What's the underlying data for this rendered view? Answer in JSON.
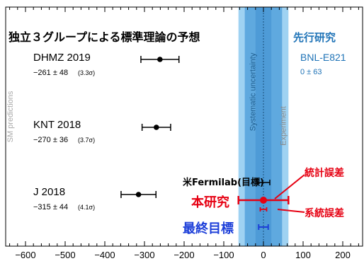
{
  "chart_data": {
    "type": "scatter",
    "title": "独立３グループによる標準理論の予想",
    "xlim": [
      -650,
      250
    ],
    "x_ticks": [
      "−600",
      "−500",
      "−400",
      "−300",
      "−200",
      "−100",
      "0",
      "100",
      "200"
    ],
    "x_tick_values": [
      -600,
      -500,
      -400,
      -300,
      -200,
      -100,
      0,
      100,
      200
    ],
    "xlabel": "",
    "ylabel": "",
    "side_labels": {
      "left": "SM predictions",
      "band_center": "Systematic uncertainty",
      "band_right": "Experiment"
    },
    "bands": {
      "experiment_range": [
        -63,
        63
      ],
      "experiment_inner_range": [
        -47,
        47
      ],
      "systematic_range": [
        -35,
        35
      ],
      "systematic_center_range": [
        -20,
        20
      ],
      "center_line": 0
    },
    "predictions": [
      {
        "name": "DHMZ 2019",
        "value_text": "−261 ± 48",
        "sigma_text": "(3.3σ)",
        "x": -261,
        "err": 48
      },
      {
        "name": "KNT 2018",
        "value_text": "−270 ± 36",
        "sigma_text": "(3.7σ)",
        "x": -270,
        "err": 36
      },
      {
        "name": "J 2018",
        "value_text": "−315 ± 44",
        "sigma_text": "(4.1σ)",
        "x": -315,
        "err": 44
      }
    ],
    "experiment": {
      "header": "先行研究",
      "name": "BNL-E821",
      "value_text": "0 ± 63"
    },
    "fermilab_goal": {
      "label": "米Fermilab(目標)",
      "x": 0,
      "err": 16
    },
    "this_work": {
      "label": "本研究",
      "x": 0,
      "stat_err": 63,
      "sys_err": 8,
      "stat_label": "統計誤差",
      "sys_label": "系統誤差"
    },
    "final_goal": {
      "label": "最終目標",
      "x": 0,
      "err": 12
    },
    "colors": {
      "band_outer": "#9fd2f2",
      "band_inner": "#5fa9df",
      "band_core": "#3f8fd0",
      "gray_strip": "#e4e4e4",
      "header_blue": "#1f73b7",
      "red": "#e60012",
      "blue": "#1d3fd9",
      "black": "#000000"
    }
  }
}
